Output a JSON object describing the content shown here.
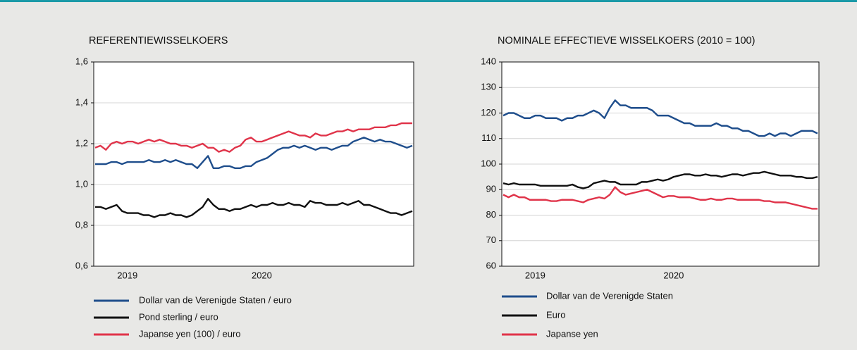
{
  "chart_data": [
    {
      "type": "line",
      "title": "REFERENTIEWISSELKOERS",
      "categories": [
        null,
        null,
        null,
        null,
        null,
        null,
        "2019",
        null,
        null,
        null,
        null,
        null,
        null,
        null,
        null,
        null,
        null,
        null,
        null,
        null,
        null,
        null,
        null,
        null,
        null,
        null,
        null,
        null,
        null,
        null,
        null,
        "2020",
        null,
        null,
        null,
        null,
        null,
        null,
        null,
        null,
        null,
        null,
        null,
        null,
        null,
        null,
        null,
        null,
        null,
        null,
        null,
        null,
        null,
        null,
        null,
        null,
        null,
        null,
        null,
        null
      ],
      "ylim": [
        0.6,
        1.6
      ],
      "yticks": [
        {
          "value": 0.6,
          "label": "0,6"
        },
        {
          "value": 0.8,
          "label": "0,8"
        },
        {
          "value": 1.0,
          "label": "1,0"
        },
        {
          "value": 1.2,
          "label": "1,2"
        },
        {
          "value": 1.4,
          "label": "1,4"
        },
        {
          "value": 1.6,
          "label": "1,6"
        }
      ],
      "grid": true,
      "series": [
        {
          "name": "Dollar van de Verenigde Staten / euro",
          "color": "#1f4e8c",
          "values": [
            1.1,
            1.1,
            1.1,
            1.11,
            1.11,
            1.1,
            1.11,
            1.11,
            1.11,
            1.11,
            1.12,
            1.11,
            1.11,
            1.12,
            1.11,
            1.12,
            1.11,
            1.1,
            1.1,
            1.08,
            1.11,
            1.14,
            1.08,
            1.08,
            1.09,
            1.09,
            1.08,
            1.08,
            1.09,
            1.09,
            1.11,
            1.12,
            1.13,
            1.15,
            1.17,
            1.18,
            1.18,
            1.19,
            1.18,
            1.19,
            1.18,
            1.17,
            1.18,
            1.18,
            1.17,
            1.18,
            1.19,
            1.19,
            1.21,
            1.22,
            1.23,
            1.22,
            1.21,
            1.22,
            1.21,
            1.21,
            1.2,
            1.19,
            1.18,
            1.19
          ]
        },
        {
          "name": "Pond sterling / euro",
          "color": "#111111",
          "values": [
            0.89,
            0.89,
            0.88,
            0.89,
            0.9,
            0.87,
            0.86,
            0.86,
            0.86,
            0.85,
            0.85,
            0.84,
            0.85,
            0.85,
            0.86,
            0.85,
            0.85,
            0.84,
            0.85,
            0.87,
            0.89,
            0.93,
            0.9,
            0.88,
            0.88,
            0.87,
            0.88,
            0.88,
            0.89,
            0.9,
            0.89,
            0.9,
            0.9,
            0.91,
            0.9,
            0.9,
            0.91,
            0.9,
            0.9,
            0.89,
            0.92,
            0.91,
            0.91,
            0.9,
            0.9,
            0.9,
            0.91,
            0.9,
            0.91,
            0.92,
            0.9,
            0.9,
            0.89,
            0.88,
            0.87,
            0.86,
            0.86,
            0.85,
            0.86,
            0.87
          ]
        },
        {
          "name": "Japanse yen (100) / euro",
          "color": "#e0344a",
          "values": [
            1.18,
            1.19,
            1.17,
            1.2,
            1.21,
            1.2,
            1.21,
            1.21,
            1.2,
            1.21,
            1.22,
            1.21,
            1.22,
            1.21,
            1.2,
            1.2,
            1.19,
            1.19,
            1.18,
            1.19,
            1.2,
            1.18,
            1.18,
            1.16,
            1.17,
            1.16,
            1.18,
            1.19,
            1.22,
            1.23,
            1.21,
            1.21,
            1.22,
            1.23,
            1.24,
            1.25,
            1.26,
            1.25,
            1.24,
            1.24,
            1.23,
            1.25,
            1.24,
            1.24,
            1.25,
            1.26,
            1.26,
            1.27,
            1.26,
            1.27,
            1.27,
            1.27,
            1.28,
            1.28,
            1.28,
            1.29,
            1.29,
            1.3,
            1.3,
            1.3
          ]
        }
      ]
    },
    {
      "type": "line",
      "title": "NOMINALE EFFECTIEVE WISSELKOERS (2010 = 100)",
      "categories": [
        null,
        null,
        null,
        null,
        null,
        null,
        "2019",
        null,
        null,
        null,
        null,
        null,
        null,
        null,
        null,
        null,
        null,
        null,
        null,
        null,
        null,
        null,
        null,
        null,
        null,
        null,
        null,
        null,
        null,
        null,
        null,
        null,
        "2020",
        null,
        null,
        null,
        null,
        null,
        null,
        null,
        null,
        null,
        null,
        null,
        null,
        null,
        null,
        null,
        null,
        null,
        null,
        null,
        null,
        null,
        null,
        null,
        null,
        null,
        null,
        null
      ],
      "ylim": [
        60,
        140
      ],
      "yticks": [
        60,
        70,
        80,
        90,
        100,
        110,
        120,
        130,
        140
      ],
      "grid": true,
      "series": [
        {
          "name": "Dollar van de Verenigde Staten",
          "color": "#1f4e8c",
          "values": [
            119,
            120,
            120,
            119,
            118,
            118,
            119,
            119,
            118,
            118,
            118,
            117,
            118,
            118,
            119,
            119,
            120,
            121,
            120,
            118,
            122,
            125,
            123,
            123,
            122,
            122,
            122,
            122,
            121,
            119,
            119,
            119,
            118,
            117,
            116,
            116,
            115,
            115,
            115,
            115,
            116,
            115,
            115,
            114,
            114,
            113,
            113,
            112,
            111,
            111,
            112,
            111,
            112,
            112,
            111,
            112,
            113,
            113,
            113,
            112
          ]
        },
        {
          "name": "Euro",
          "color": "#111111",
          "values": [
            92.5,
            92,
            92.5,
            92,
            92,
            92,
            92,
            91.5,
            91.5,
            91.5,
            91.5,
            91.5,
            91.5,
            92,
            91,
            90.5,
            91,
            92.5,
            93,
            93.5,
            93,
            93,
            92,
            92,
            92,
            92,
            93,
            93,
            93.5,
            94,
            93.5,
            94,
            95,
            95.5,
            96,
            96,
            95.5,
            95.5,
            96,
            95.5,
            95.5,
            95,
            95.5,
            96,
            96,
            95.5,
            96,
            96.5,
            96.5,
            97,
            96.5,
            96,
            95.5,
            95.5,
            95.5,
            95,
            95,
            94.5,
            94.5,
            95
          ]
        },
        {
          "name": "Japanse yen",
          "color": "#e0344a",
          "values": [
            88,
            87,
            88,
            87,
            87,
            86,
            86,
            86,
            86,
            85.5,
            85.5,
            86,
            86,
            86,
            85.5,
            85,
            86,
            86.5,
            87,
            86.5,
            88,
            91,
            89,
            88,
            88.5,
            89,
            89.5,
            90,
            89,
            88,
            87,
            87.5,
            87.5,
            87,
            87,
            87,
            86.5,
            86,
            86,
            86.5,
            86,
            86,
            86.5,
            86.5,
            86,
            86,
            86,
            86,
            86,
            85.5,
            85.5,
            85,
            85,
            85,
            84.5,
            84,
            83.5,
            83,
            82.5,
            82.5
          ]
        }
      ]
    }
  ]
}
